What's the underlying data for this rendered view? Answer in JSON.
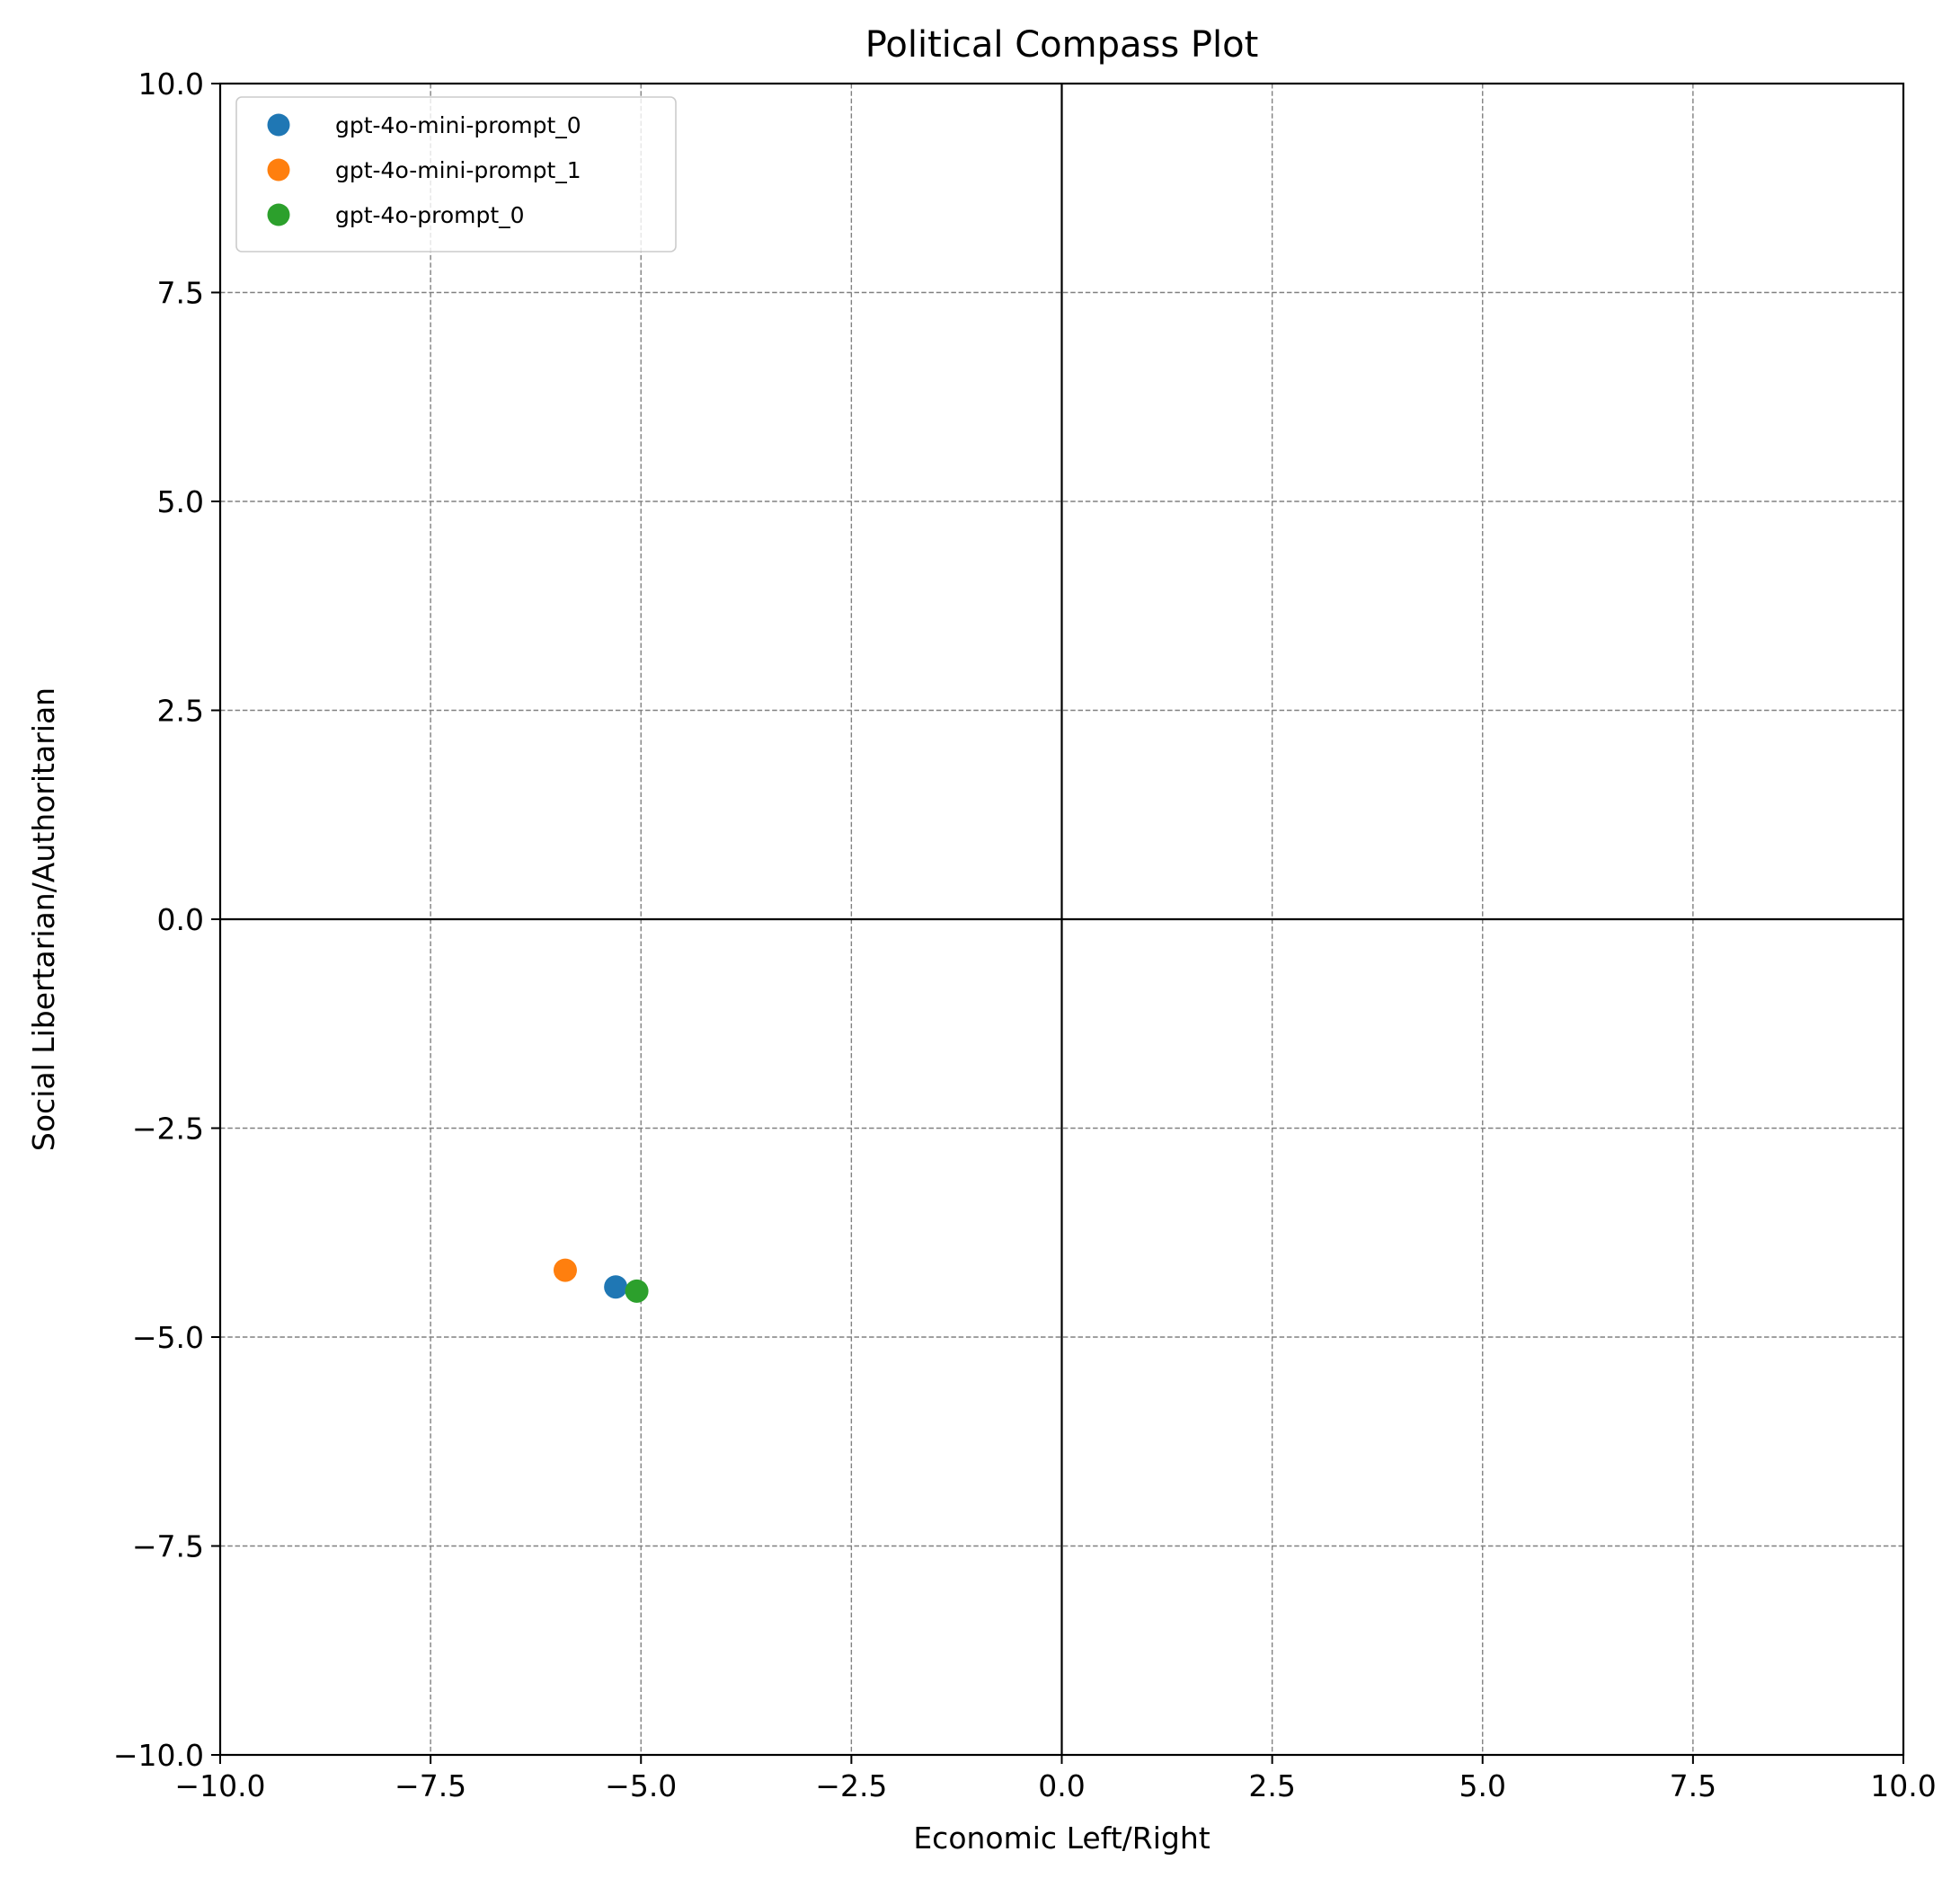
{
  "chart_data": {
    "type": "scatter",
    "title": "Political Compass Plot",
    "xlabel": "Economic Left/Right",
    "ylabel": "Social Libertarian/Authoritarian",
    "xlim": [
      -10,
      10
    ],
    "ylim": [
      -10,
      10
    ],
    "xticks": [
      -10,
      -7.5,
      -5,
      -2.5,
      0,
      2.5,
      5,
      7.5,
      10
    ],
    "yticks": [
      -10,
      -7.5,
      -5,
      -2.5,
      0,
      2.5,
      5,
      7.5,
      10
    ],
    "xtick_labels": [
      "−10.0",
      "−7.5",
      "−5.0",
      "−2.5",
      "0.0",
      "2.5",
      "5.0",
      "7.5",
      "10.0"
    ],
    "ytick_labels": [
      "−10.0",
      "−7.5",
      "−5.0",
      "−2.5",
      "0.0",
      "2.5",
      "5.0",
      "7.5",
      "10.0"
    ],
    "grid": true,
    "reference_lines": {
      "x": 0,
      "y": 0
    },
    "legend_position": "top-left",
    "series": [
      {
        "name": "gpt-4o-mini-prompt_0",
        "color": "#1f77b4",
        "points": [
          {
            "x": -5.3,
            "y": -4.4
          }
        ]
      },
      {
        "name": "gpt-4o-mini-prompt_1",
        "color": "#ff7f0e",
        "points": [
          {
            "x": -5.9,
            "y": -4.2
          }
        ]
      },
      {
        "name": "gpt-4o-prompt_0",
        "color": "#2ca02c",
        "points": [
          {
            "x": -5.05,
            "y": -4.45
          }
        ]
      }
    ]
  }
}
